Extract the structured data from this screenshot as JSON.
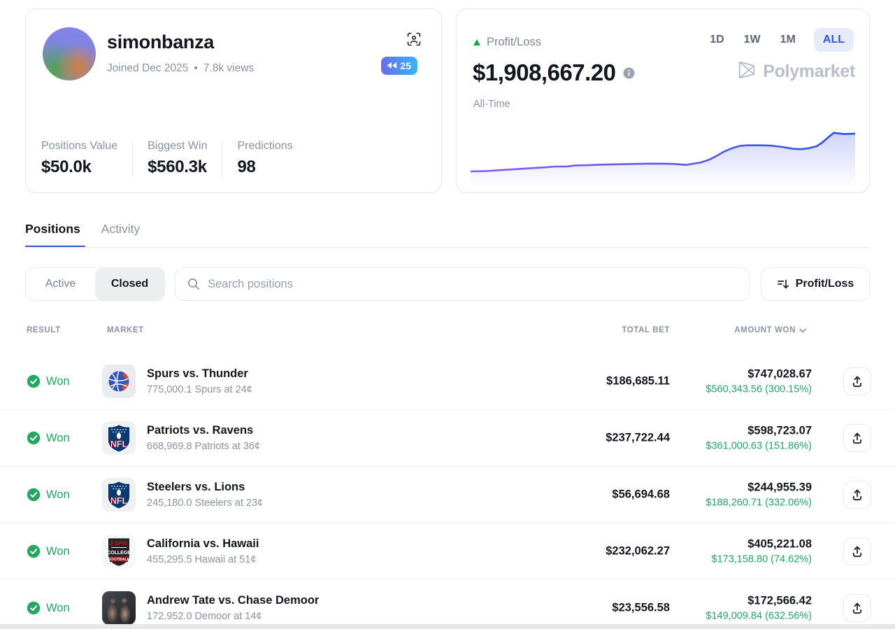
{
  "profile": {
    "name": "simonbanza",
    "joined": "Joined Dec 2025",
    "meta_separator": "•",
    "views": "7.8k views",
    "streak_badge": "25",
    "stats": [
      {
        "label": "Positions Value",
        "value": "$50.0k"
      },
      {
        "label": "Biggest Win",
        "value": "$560.3k"
      },
      {
        "label": "Predictions",
        "value": "98"
      }
    ]
  },
  "pnl": {
    "label": "Profit/Loss",
    "value": "$1,908,667.20",
    "period": "All-Time",
    "ranges": [
      {
        "label": "1D",
        "active": false
      },
      {
        "label": "1W",
        "active": false
      },
      {
        "label": "1M",
        "active": false
      },
      {
        "label": "ALL",
        "active": true
      }
    ],
    "brand": "Polymarket",
    "accent_green": "#17a44f",
    "accent_blue": "#2d53e0"
  },
  "chart_data": {
    "type": "area",
    "title": "Profit/Loss sparkline (All-Time)",
    "xlabel": "",
    "ylabel": "",
    "axes_visible": false,
    "grid": false,
    "legend": false,
    "end_value": "$1,908,667.20",
    "line_gradient": [
      "#8f58e8",
      "#2b50df"
    ],
    "fill_color": "rgba(86,106,229,0.30)",
    "points_pct": [
      [
        0,
        76
      ],
      [
        4,
        75.5
      ],
      [
        8,
        74
      ],
      [
        12,
        72.5
      ],
      [
        16,
        71
      ],
      [
        20,
        69.5
      ],
      [
        22,
        68.5
      ],
      [
        25,
        68.5
      ],
      [
        27,
        67
      ],
      [
        30,
        66.5
      ],
      [
        34,
        65.5
      ],
      [
        38,
        65
      ],
      [
        42,
        64.5
      ],
      [
        46,
        64
      ],
      [
        50,
        64
      ],
      [
        53,
        64.5
      ],
      [
        56,
        66
      ],
      [
        58,
        64
      ],
      [
        60,
        62
      ],
      [
        62,
        58
      ],
      [
        64,
        52
      ],
      [
        66,
        45
      ],
      [
        68,
        40
      ],
      [
        70,
        36.5
      ],
      [
        72,
        35.5
      ],
      [
        75,
        35.5
      ],
      [
        78,
        36
      ],
      [
        81,
        38
      ],
      [
        84,
        41
      ],
      [
        86,
        41.5
      ],
      [
        88,
        40
      ],
      [
        90,
        37
      ],
      [
        91.5,
        31
      ],
      [
        93,
        23
      ],
      [
        94.5,
        16
      ],
      [
        95.5,
        17
      ],
      [
        97,
        18
      ],
      [
        100,
        17.5
      ]
    ]
  },
  "tabs": [
    {
      "label": "Positions",
      "active": true
    },
    {
      "label": "Activity",
      "active": false
    }
  ],
  "filters": {
    "segments": [
      {
        "label": "Active",
        "active": false
      },
      {
        "label": "Closed",
        "active": true
      }
    ],
    "search_placeholder": "Search positions",
    "sort_label": "Profit/Loss"
  },
  "table": {
    "headers": {
      "result": "RESULT",
      "market": "MARKET",
      "total_bet": "TOTAL BET",
      "amount_won": "AMOUNT WON"
    },
    "rows": [
      {
        "result": "Won",
        "icon": "nba",
        "title": "Spurs vs. Thunder",
        "subtitle": "775,000.1 Spurs at 24¢",
        "total_bet": "$186,685.11",
        "amount_won": "$747,028.67",
        "profit": "$560,343.56 (300.15%)"
      },
      {
        "result": "Won",
        "icon": "nfl",
        "title": "Patriots vs. Ravens",
        "subtitle": "668,969.8 Patriots at 36¢",
        "total_bet": "$237,722.44",
        "amount_won": "$598,723.07",
        "profit": "$361,000.63 (151.86%)"
      },
      {
        "result": "Won",
        "icon": "nfl",
        "title": "Steelers vs. Lions",
        "subtitle": "245,180.0 Steelers at 23¢",
        "total_bet": "$56,694.68",
        "amount_won": "$244,955.39",
        "profit": "$188,260.71 (332.06%)"
      },
      {
        "result": "Won",
        "icon": "espn-college-football",
        "title": "California vs. Hawaii",
        "subtitle": "455,295.5 Hawaii at 51¢",
        "total_bet": "$232,062.27",
        "amount_won": "$405,221.08",
        "profit": "$173,158.80 (74.62%)"
      },
      {
        "result": "Won",
        "icon": "fight-photo",
        "title": "Andrew Tate vs. Chase Demoor",
        "subtitle": "172,952.0 Demoor at 14¢",
        "total_bet": "$23,556.58",
        "amount_won": "$172,566.42",
        "profit": "$149,009.84 (632.56%)"
      }
    ]
  }
}
